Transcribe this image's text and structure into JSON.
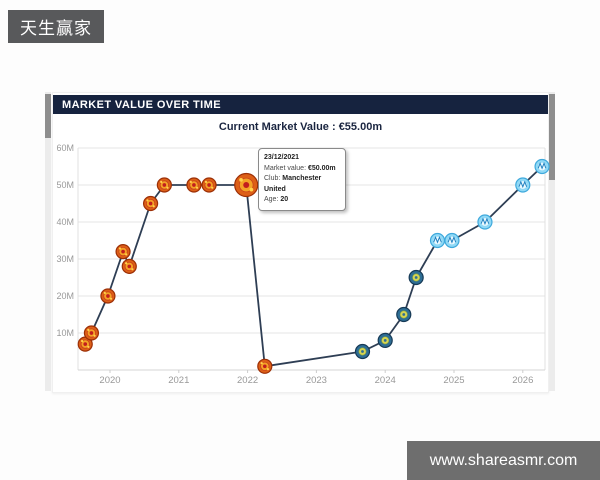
{
  "brand_badge": {
    "text": "天生赢家"
  },
  "panel": {
    "header_title": "MARKET VALUE OVER TIME",
    "current_value_text": "Current Market Value : €55.00m"
  },
  "tooltip": {
    "date": "23/12/2021",
    "market_value_label": "Market value:",
    "market_value": "€50.00m",
    "club_label": "Club:",
    "club": "Manchester United",
    "age_label": "Age:",
    "age": "20"
  },
  "watermark": {
    "text": "www.shareasmr.com"
  },
  "chart_data": {
    "type": "line",
    "title": "Market value over time",
    "currency_unit": "€m",
    "xlabel": "",
    "ylabel": "",
    "x_ticks": [
      "2020",
      "2021",
      "2022",
      "2023",
      "2024",
      "2025",
      "2026"
    ],
    "y_tick_labels": [
      "10M",
      "20M",
      "30M",
      "40M",
      "50M",
      "60M"
    ],
    "y_tick_values": [
      10,
      20,
      30,
      40,
      50,
      60
    ],
    "ylim": [
      0,
      60
    ],
    "xlim": [
      2019.53,
      2026.32
    ],
    "grid": "horizontal",
    "legend": "none",
    "colors": {
      "line": "#2e3e54",
      "man_utd_badge": "#dd5f17",
      "getafe_badge": "#2e6e95",
      "marseille_badge": "#90d9f6",
      "axis_label": "#999999",
      "gridline": "#e6e6e6"
    },
    "points": [
      {
        "x": 2019.64,
        "value_m": 7,
        "label": "€7.00m",
        "club": "Manchester United",
        "badge": "man-utd"
      },
      {
        "x": 2019.73,
        "value_m": 10,
        "label": "€10.00m",
        "club": "Manchester United",
        "badge": "man-utd"
      },
      {
        "x": 2019.97,
        "value_m": 20,
        "label": "€20.00m",
        "club": "Manchester United",
        "badge": "man-utd"
      },
      {
        "x": 2020.19,
        "value_m": 32,
        "label": "€32.00m",
        "club": "Manchester United",
        "badge": "man-utd"
      },
      {
        "x": 2020.28,
        "value_m": 28,
        "label": "€28.00m",
        "club": "Manchester United",
        "badge": "man-utd"
      },
      {
        "x": 2020.59,
        "value_m": 45,
        "label": "€45.00m",
        "club": "Manchester United",
        "badge": "man-utd"
      },
      {
        "x": 2020.79,
        "value_m": 50,
        "label": "€50.00m",
        "club": "Manchester United",
        "badge": "man-utd"
      },
      {
        "x": 2021.22,
        "value_m": 50,
        "label": "€50.00m",
        "club": "Manchester United",
        "badge": "man-utd"
      },
      {
        "x": 2021.44,
        "value_m": 50,
        "label": "€50.00m",
        "club": "Manchester United",
        "badge": "man-utd"
      },
      {
        "x": 2021.98,
        "value_m": 50,
        "label": "€50.00m",
        "club": "Manchester United",
        "badge": "man-utd",
        "highlighted": true,
        "date": "23/12/2021",
        "age": "20"
      },
      {
        "x": 2022.25,
        "value_m": 1,
        "label": "€1.00m",
        "club": "Manchester United",
        "badge": "man-utd"
      },
      {
        "x": 2023.67,
        "value_m": 5,
        "label": "€5.00m",
        "club": "Getafe",
        "badge": "getafe"
      },
      {
        "x": 2024.0,
        "value_m": 8,
        "label": "€8.00m",
        "club": "Getafe",
        "badge": "getafe"
      },
      {
        "x": 2024.27,
        "value_m": 15,
        "label": "€15.00m",
        "club": "Getafe",
        "badge": "getafe"
      },
      {
        "x": 2024.45,
        "value_m": 25,
        "label": "€25.00m",
        "club": "Getafe",
        "badge": "getafe"
      },
      {
        "x": 2024.76,
        "value_m": 35,
        "label": "€35.00m",
        "club": "Marseille",
        "badge": "marseille"
      },
      {
        "x": 2024.97,
        "value_m": 35,
        "label": "€35.00m",
        "club": "Marseille",
        "badge": "marseille"
      },
      {
        "x": 2025.45,
        "value_m": 40,
        "label": "€40.00m",
        "club": "Marseille",
        "badge": "marseille"
      },
      {
        "x": 2026.0,
        "value_m": 50,
        "label": "€50.00m",
        "club": "Marseille",
        "badge": "marseille"
      },
      {
        "x": 2026.28,
        "value_m": 55,
        "label": "€55.00m",
        "club": "Marseille",
        "badge": "marseille"
      }
    ]
  }
}
